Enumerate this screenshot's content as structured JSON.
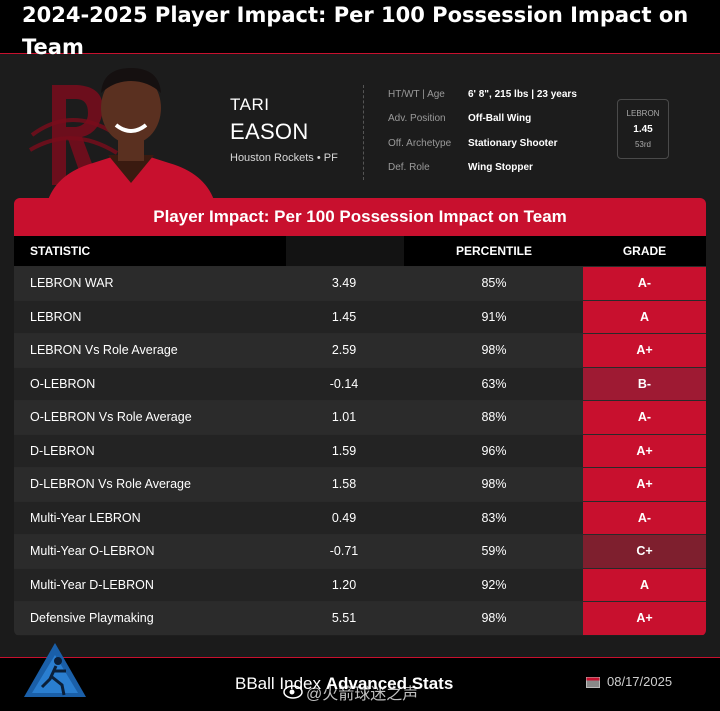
{
  "page_title": "2024-2025 Player Impact: Per 100 Possession Impact on Team",
  "player": {
    "first_name": "TARI",
    "last_name": "EASON",
    "team_position": "Houston Rockets • PF"
  },
  "info": [
    {
      "label": "HT/WT | Age",
      "value": "6' 8\", 215 lbs | 23 years"
    },
    {
      "label": "Adv. Position",
      "value": "Off-Ball Wing"
    },
    {
      "label": "Off. Archetype",
      "value": "Stationary Shooter"
    },
    {
      "label": "Def. Role",
      "value": "Wing Stopper"
    }
  ],
  "lebron_box": {
    "label": "LEBRON",
    "value": "1.45",
    "rank": "53rd"
  },
  "table": {
    "title": "Player Impact: Per 100 Possession Impact on Team",
    "headers": {
      "statistic": "STATISTIC",
      "percentile": "PERCENTILE",
      "grade": "GRADE"
    },
    "rows": [
      {
        "statistic": "LEBRON WAR",
        "value": "3.49",
        "percentile": "85%",
        "grade": "A-"
      },
      {
        "statistic": "LEBRON",
        "value": "1.45",
        "percentile": "91%",
        "grade": "A"
      },
      {
        "statistic": "LEBRON Vs Role Average",
        "value": "2.59",
        "percentile": "98%",
        "grade": "A+"
      },
      {
        "statistic": "O-LEBRON",
        "value": "-0.14",
        "percentile": "63%",
        "grade": "B-"
      },
      {
        "statistic": "O-LEBRON Vs Role Average",
        "value": "1.01",
        "percentile": "88%",
        "grade": "A-"
      },
      {
        "statistic": "D-LEBRON",
        "value": "1.59",
        "percentile": "96%",
        "grade": "A+"
      },
      {
        "statistic": "D-LEBRON Vs Role Average",
        "value": "1.58",
        "percentile": "98%",
        "grade": "A+"
      },
      {
        "statistic": "Multi-Year LEBRON",
        "value": "0.49",
        "percentile": "83%",
        "grade": "A-"
      },
      {
        "statistic": "Multi-Year O-LEBRON",
        "value": "-0.71",
        "percentile": "59%",
        "grade": "C+"
      },
      {
        "statistic": "Multi-Year D-LEBRON",
        "value": "1.20",
        "percentile": "92%",
        "grade": "A"
      },
      {
        "statistic": "Defensive Playmaking",
        "value": "5.51",
        "percentile": "98%",
        "grade": "A+"
      }
    ]
  },
  "grade_colors": {
    "A+": "#c8102e",
    "A": "#c8102e",
    "A-": "#c8102e",
    "B-": "#9e1a33",
    "C+": "#7e1f2e"
  },
  "footer": {
    "brand_prefix": "BBall Index ",
    "brand_bold": "Advanced Stats",
    "date": "08/17/2025",
    "watermark": "@火箭球迷之声"
  },
  "icons": {
    "team_logo": "rockets-logo-icon",
    "footer_logo": "bball-index-logo-icon",
    "calendar": "calendar-icon",
    "weibo": "weibo-icon"
  }
}
